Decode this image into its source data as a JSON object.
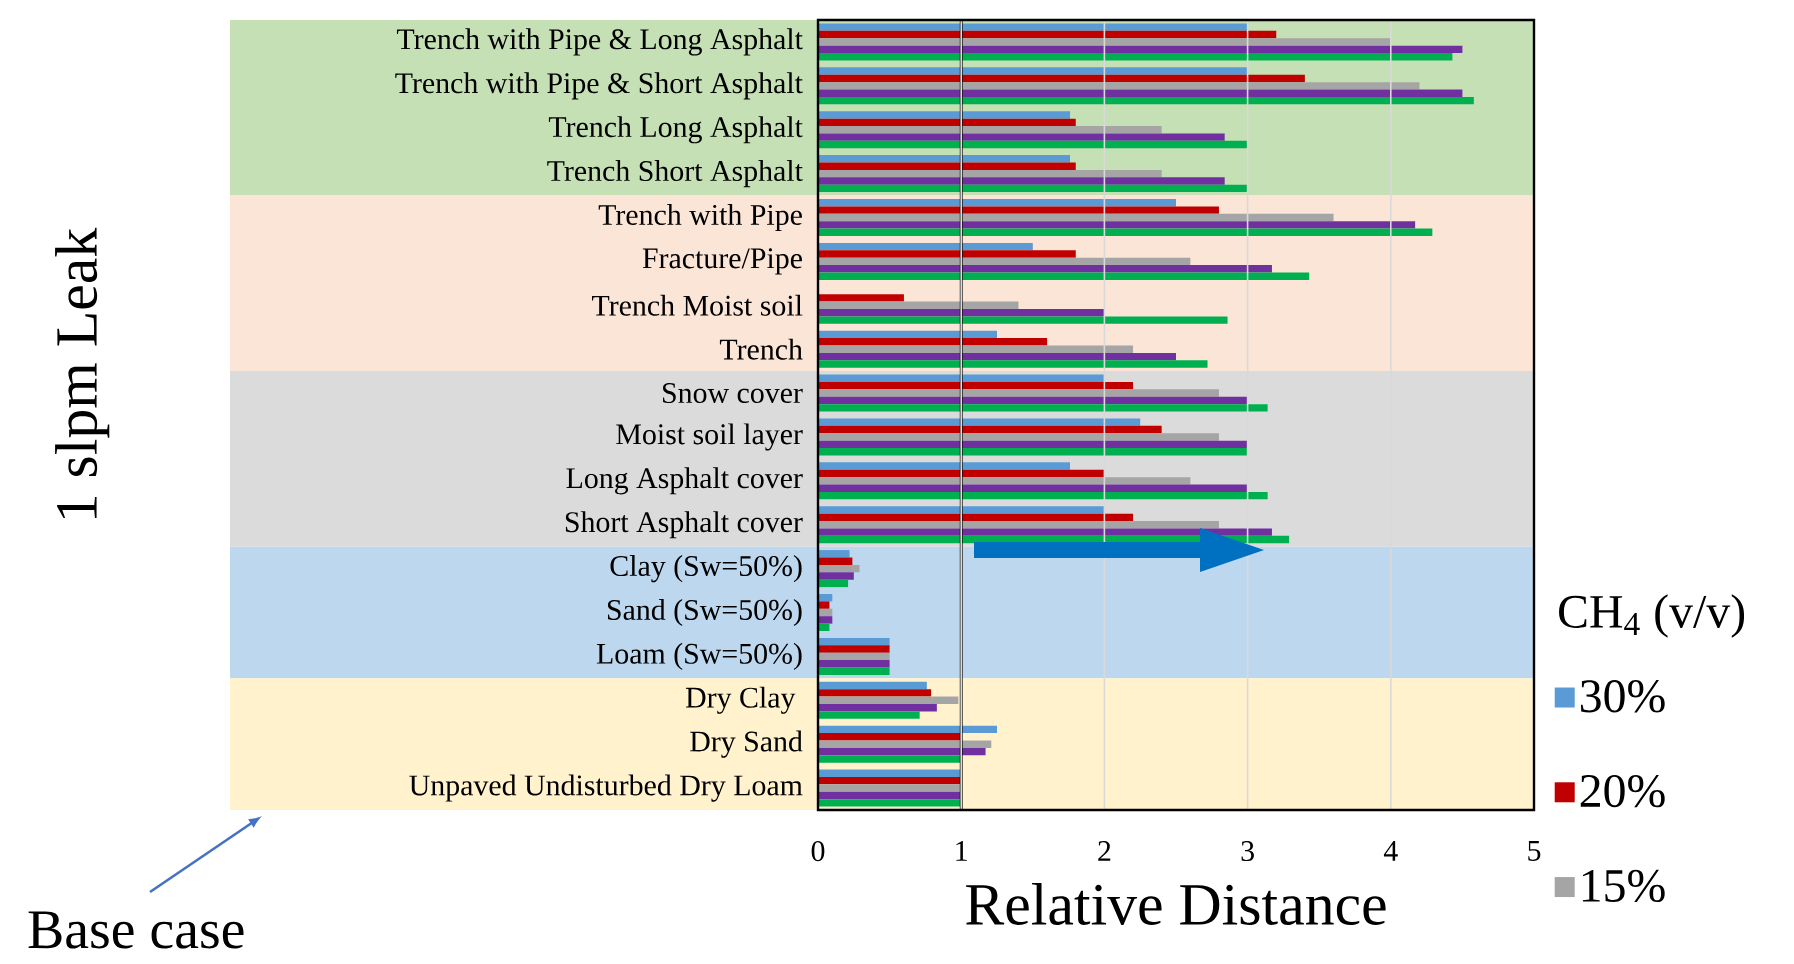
{
  "chart_data": {
    "type": "bar",
    "orientation": "horizontal",
    "ylabel": "1 slpm Leak",
    "xlabel": "Relative Distance",
    "legend_title": "CH$_{4}$ (v/v)",
    "categories": [
      "Trench with Pipe & Long Asphalt",
      "Trench with Pipe & Short Asphalt",
      "Trench  Long Asphalt",
      "Trench Short Asphalt",
      "Trench with Pipe",
      "Fracture/Pipe",
      "Trench Moist soil",
      "Trench",
      "Snow cover",
      "Moist soil layer",
      "Long Asphalt cover",
      "Short Asphalt cover",
      "Clay (Sw=50%)",
      "Sand (Sw=50%)",
      "Loam (Sw=50%)",
      "Dry Clay ",
      "Dry Sand",
      "Unpaved Undisturbed Dry Loam"
    ],
    "series": [
      {
        "name": "30%",
        "color": "#5b9bd5",
        "values": [
          3.0,
          3.0,
          1.76,
          1.76,
          2.5,
          1.5,
          null,
          1.25,
          2.0,
          2.25,
          1.76,
          2.0,
          0.22,
          0.1,
          0.5,
          0.76,
          1.25,
          1.0
        ]
      },
      {
        "name": "20%",
        "color": "#c00000",
        "values": [
          3.2,
          3.4,
          1.8,
          1.8,
          2.8,
          1.8,
          0.6,
          1.6,
          2.2,
          2.4,
          2.0,
          2.2,
          0.24,
          0.08,
          0.5,
          0.79,
          1.0,
          1.0
        ]
      },
      {
        "name": "15%",
        "color": "#a5a5a5",
        "values": [
          4.0,
          4.2,
          2.4,
          2.4,
          3.6,
          2.6,
          1.4,
          2.2,
          2.8,
          2.8,
          2.6,
          2.8,
          0.29,
          0.1,
          0.5,
          0.98,
          1.21,
          1.0
        ]
      },
      {
        "color": "#7030a0",
        "values": [
          4.5,
          4.5,
          2.84,
          2.84,
          4.17,
          3.17,
          2.0,
          2.5,
          3.0,
          3.0,
          3.0,
          3.17,
          0.25,
          0.1,
          0.5,
          0.83,
          1.17,
          1.0
        ]
      },
      {
        "color": "#00b050",
        "values": [
          4.43,
          4.58,
          3.0,
          3.0,
          4.29,
          3.43,
          2.86,
          2.72,
          3.14,
          3.0,
          3.14,
          3.29,
          0.21,
          0.08,
          0.5,
          0.71,
          1.0,
          1.0
        ]
      }
    ],
    "xlim": [
      0,
      5
    ],
    "xticks": [
      0,
      1,
      2,
      3,
      4,
      5
    ],
    "grid": "x",
    "legend": "right",
    "ref_lines": [
      {
        "axis": "x",
        "value": 1,
        "color": "#000000"
      }
    ],
    "bands": [
      {
        "axis": "y",
        "from": "Trench with Pipe & Long Asphalt",
        "to": "Trench Short Asphalt",
        "color": "#c5e0b4"
      },
      {
        "axis": "y",
        "from": "Trench with Pipe",
        "to": "Trench",
        "color": "#fbe5d6"
      },
      {
        "axis": "y",
        "from": "Snow cover",
        "to": "Short Asphalt cover",
        "color": "#dbdbdb"
      },
      {
        "axis": "y",
        "from": "Clay (Sw=50%)",
        "to": "Loam (Sw=50%)",
        "color": "#bdd7ee"
      },
      {
        "axis": "y",
        "from": "Dry Clay ",
        "to": "Unpaved Undisturbed Dry Loam",
        "color": "#fff2cc"
      }
    ],
    "annotations": [
      "Base case"
    ]
  }
}
